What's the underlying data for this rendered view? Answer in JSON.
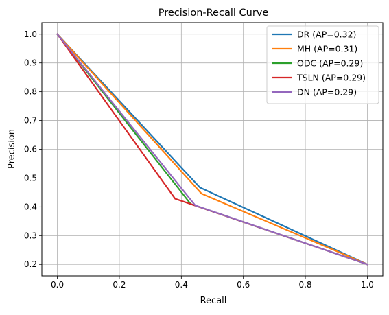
{
  "chart_data": {
    "type": "line",
    "title": "Precision-Recall Curve",
    "xlabel": "Recall",
    "ylabel": "Precision",
    "xlim": [
      -0.05,
      1.05
    ],
    "ylim": [
      0.16,
      1.04
    ],
    "xticks": [
      0.0,
      0.2,
      0.4,
      0.6,
      0.8,
      1.0
    ],
    "xtick_labels": [
      "0.0",
      "0.2",
      "0.4",
      "0.6",
      "0.8",
      "1.0"
    ],
    "yticks": [
      0.2,
      0.3,
      0.4,
      0.5,
      0.6,
      0.7,
      0.8,
      0.9,
      1.0
    ],
    "ytick_labels": [
      "0.2",
      "0.3",
      "0.4",
      "0.5",
      "0.6",
      "0.7",
      "0.8",
      "0.9",
      "1.0"
    ],
    "grid": true,
    "legend_position": "top-right",
    "series": [
      {
        "name": "DR (AP=0.32)",
        "color": "#1f77b4",
        "x": [
          0.0,
          0.46,
          1.0
        ],
        "y": [
          1.0,
          0.467,
          0.2
        ]
      },
      {
        "name": "MH (AP=0.31)",
        "color": "#ff7f0e",
        "x": [
          0.0,
          0.465,
          1.0
        ],
        "y": [
          1.0,
          0.446,
          0.2
        ]
      },
      {
        "name": "ODC (AP=0.29)",
        "color": "#2ca02c",
        "x": [
          0.0,
          0.43,
          1.0
        ],
        "y": [
          1.0,
          0.41,
          0.2
        ]
      },
      {
        "name": "TSLN (AP=0.29)",
        "color": "#d62728",
        "x": [
          0.0,
          0.38,
          1.0
        ],
        "y": [
          1.0,
          0.428,
          0.2
        ]
      },
      {
        "name": "DN (AP=0.29)",
        "color": "#9467bd",
        "x": [
          0.0,
          0.445,
          1.0
        ],
        "y": [
          1.0,
          0.405,
          0.2
        ]
      }
    ]
  }
}
